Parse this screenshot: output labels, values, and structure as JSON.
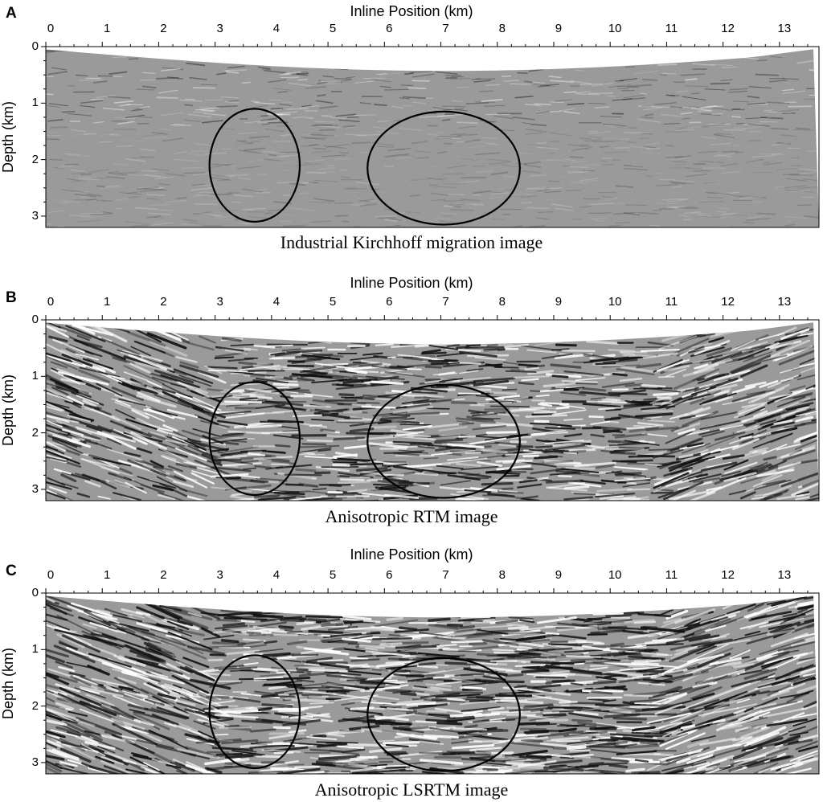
{
  "panels": [
    {
      "letter": "A",
      "x_title": "Inline Position (km)",
      "y_title": "Depth (km)",
      "caption": "Industrial Kirchhoff migration image",
      "style": "kirchhoff"
    },
    {
      "letter": "B",
      "x_title": "Inline Position (km)",
      "y_title": "Depth (km)",
      "caption": "Anisotropic RTM image",
      "style": "rtm"
    },
    {
      "letter": "C",
      "x_title": "Inline Position (km)",
      "y_title": "Depth (km)",
      "caption": "Anisotropic LSRTM image",
      "style": "lsrtm"
    }
  ],
  "x_ticks": [
    "0",
    "1",
    "2",
    "3",
    "4",
    "5",
    "6",
    "7",
    "8",
    "9",
    "10",
    "11",
    "12",
    "13"
  ],
  "y_ticks": [
    "0",
    "1",
    "2",
    "3"
  ],
  "x_range_km": [
    0,
    13.7
  ],
  "y_range_km": [
    0,
    3.2
  ],
  "ellipses_km": [
    {
      "cx": 3.7,
      "cy": 2.1,
      "rx": 0.8,
      "ry": 1.0
    },
    {
      "cx": 7.05,
      "cy": 2.15,
      "rx": 1.35,
      "ry": 1.0
    }
  ],
  "colors": {
    "background": "#ffffff",
    "seismic_mid": "#9a9a9a",
    "ink": "#000000"
  }
}
